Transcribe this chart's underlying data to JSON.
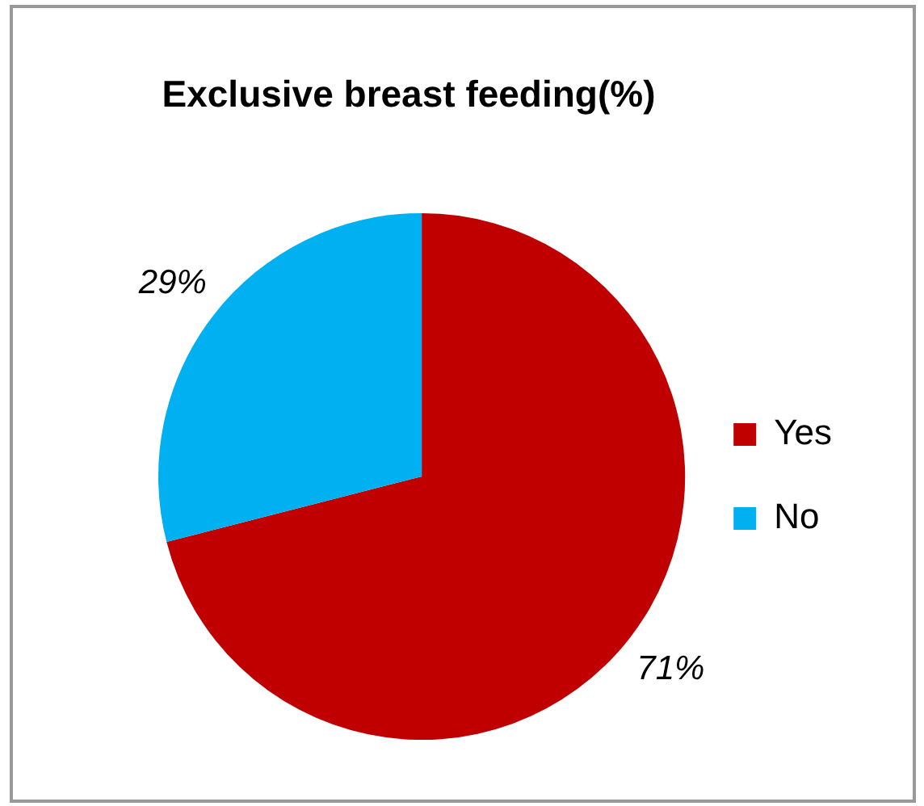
{
  "chart_data": {
    "type": "pie",
    "title": "Exclusive breast feeding(%)",
    "categories": [
      "Yes",
      "No"
    ],
    "values": [
      71,
      29
    ],
    "colors": [
      "#c00000",
      "#00b0f0"
    ],
    "value_labels": [
      "71%",
      "29%"
    ],
    "legend": "right"
  }
}
